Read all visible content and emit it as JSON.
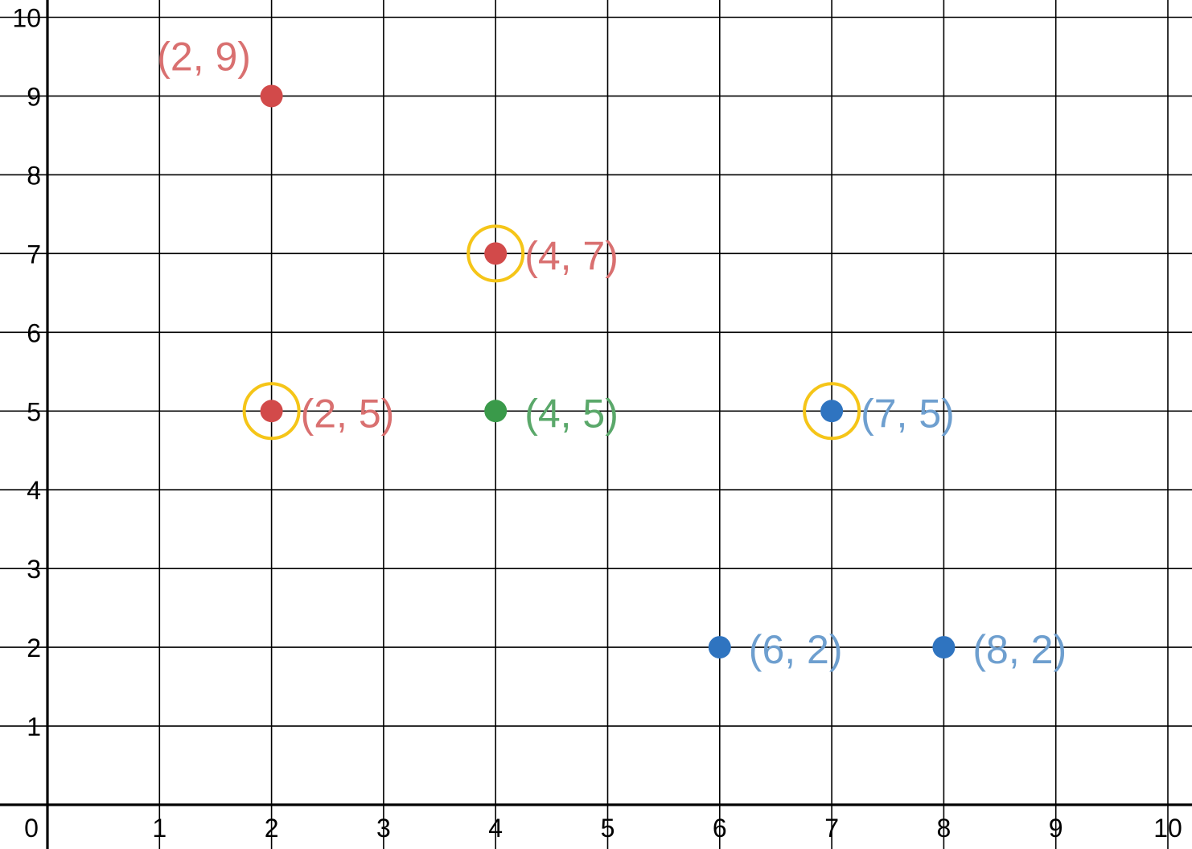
{
  "chart_data": {
    "type": "scatter",
    "title": "",
    "xlabel": "",
    "ylabel": "",
    "xlim": [
      0,
      10
    ],
    "ylim": [
      0,
      10
    ],
    "grid": true,
    "x_ticks": [
      "1",
      "2",
      "3",
      "4",
      "5",
      "6",
      "7",
      "8",
      "9",
      "10"
    ],
    "y_ticks": [
      "1",
      "2",
      "3",
      "4",
      "5",
      "6",
      "7",
      "8",
      "9",
      "10"
    ],
    "origin_label": "0",
    "colors": {
      "red": "#d24a4a",
      "green": "#3a9a4a",
      "blue": "#2f74c0",
      "highlight": "#f5c518",
      "red_label": "#d97070",
      "green_label": "#5aa86a",
      "blue_label": "#6e9fcf"
    },
    "points": [
      {
        "x": 2,
        "y": 9,
        "label": "(2, 9)",
        "color": "red",
        "highlighted": false
      },
      {
        "x": 4,
        "y": 7,
        "label": "(4, 7)",
        "color": "red",
        "highlighted": true
      },
      {
        "x": 2,
        "y": 5,
        "label": "(2, 5)",
        "color": "red",
        "highlighted": true
      },
      {
        "x": 4,
        "y": 5,
        "label": "(4, 5)",
        "color": "green",
        "highlighted": false
      },
      {
        "x": 7,
        "y": 5,
        "label": "(7, 5)",
        "color": "blue",
        "highlighted": true
      },
      {
        "x": 6,
        "y": 2,
        "label": "(6, 2)",
        "color": "blue",
        "highlighted": false
      },
      {
        "x": 8,
        "y": 2,
        "label": "(8, 2)",
        "color": "blue",
        "highlighted": false
      }
    ]
  }
}
